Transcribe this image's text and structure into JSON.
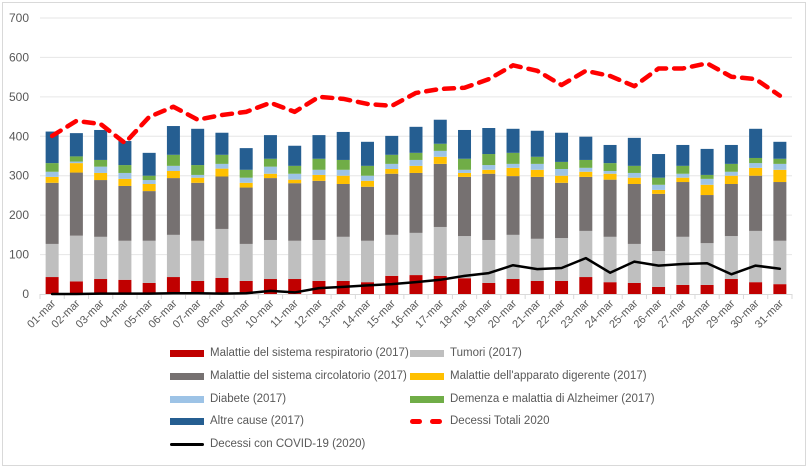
{
  "chart_data": {
    "type": "bar",
    "subtype": "stacked-bar-with-lines",
    "title": "",
    "xlabel": "",
    "ylabel": "",
    "ylim": [
      0,
      700
    ],
    "yticks": [
      0,
      100,
      200,
      300,
      400,
      500,
      600,
      700
    ],
    "grid": true,
    "legend_position": "bottom",
    "categories": [
      "01-mar",
      "02-mar",
      "03-mar",
      "04-mar",
      "05-mar",
      "06-mar",
      "07-mar",
      "08-mar",
      "09-mar",
      "10-mar",
      "11-mar",
      "12-mar",
      "13-mar",
      "14-mar",
      "15-mar",
      "16-mar",
      "17-mar",
      "18-mar",
      "19-mar",
      "20-mar",
      "21-mar",
      "22-mar",
      "23-mar",
      "24-mar",
      "25-mar",
      "26-mar",
      "27-mar",
      "28-mar",
      "29-mar",
      "30-mar",
      "31-mar"
    ],
    "series": [
      {
        "name": "Malattie del sistema respiratorio (2017)",
        "kind": "bar",
        "color": "#c00000",
        "values": [
          43,
          32,
          38,
          36,
          28,
          43,
          33,
          41,
          33,
          38,
          38,
          33,
          33,
          30,
          46,
          48,
          46,
          40,
          28,
          38,
          33,
          33,
          43,
          30,
          28,
          18,
          23,
          23,
          38,
          30,
          25
        ]
      },
      {
        "name": "Tumori (2017)",
        "kind": "bar",
        "color": "#bfbfbf",
        "values": [
          84,
          116,
          107,
          99,
          107,
          107,
          102,
          124,
          94,
          99,
          97,
          104,
          112,
          105,
          104,
          107,
          124,
          107,
          109,
          112,
          107,
          109,
          117,
          115,
          99,
          91,
          122,
          106,
          109,
          130,
          110
        ]
      },
      {
        "name": "Malattie del sistema circolatorio (2017)",
        "kind": "bar",
        "color": "#767171",
        "values": [
          155,
          160,
          144,
          139,
          126,
          144,
          147,
          133,
          143,
          157,
          146,
          150,
          134,
          137,
          155,
          152,
          160,
          150,
          168,
          149,
          157,
          140,
          137,
          145,
          152,
          145,
          139,
          122,
          132,
          140,
          149
        ]
      },
      {
        "name": "Malattie dell'apparato digerente (2017)",
        "kind": "bar",
        "color": "#ffc000",
        "values": [
          15,
          24,
          18,
          18,
          18,
          18,
          13,
          20,
          12,
          11,
          9,
          15,
          21,
          15,
          12,
          18,
          18,
          10,
          10,
          21,
          18,
          18,
          13,
          15,
          16,
          10,
          11,
          26,
          21,
          20,
          31
        ]
      },
      {
        "name": "Diabete (2017)",
        "kind": "bar",
        "color": "#9dc3e6",
        "values": [
          13,
          4,
          16,
          15,
          10,
          13,
          7,
          12,
          13,
          18,
          15,
          13,
          15,
          13,
          13,
          15,
          15,
          8,
          12,
          10,
          15,
          17,
          10,
          7,
          12,
          13,
          10,
          15,
          10,
          12,
          15
        ]
      },
      {
        "name": "Demenza e malattia di Alzheimer (2017)",
        "kind": "bar",
        "color": "#70ad47",
        "values": [
          22,
          13,
          17,
          20,
          11,
          28,
          25,
          23,
          20,
          20,
          20,
          28,
          25,
          25,
          23,
          18,
          18,
          28,
          28,
          28,
          18,
          18,
          20,
          20,
          18,
          18,
          20,
          10,
          20,
          13,
          13
        ]
      },
      {
        "name": "Altre cause (2017)",
        "kind": "bar",
        "color": "#255e91",
        "values": [
          80,
          59,
          76,
          61,
          58,
          73,
          92,
          56,
          55,
          60,
          51,
          60,
          71,
          61,
          48,
          66,
          61,
          73,
          66,
          61,
          66,
          74,
          59,
          46,
          71,
          60,
          53,
          66,
          48,
          74,
          43
        ]
      },
      {
        "name": "Decessi Totali 2020",
        "kind": "line",
        "style": "dashed",
        "color": "#ff0000",
        "values": [
          401,
          439,
          431,
          383,
          449,
          475,
          442,
          454,
          462,
          485,
          462,
          500,
          495,
          482,
          477,
          510,
          520,
          523,
          545,
          580,
          566,
          530,
          566,
          553,
          527,
          572,
          572,
          585,
          551,
          545,
          503
        ]
      },
      {
        "name": "Decessi con COVID-19 (2020)",
        "kind": "line",
        "style": "solid",
        "color": "#000000",
        "values": [
          0,
          0,
          1,
          1,
          1,
          2,
          2,
          1,
          2,
          8,
          4,
          15,
          18,
          22,
          25,
          30,
          36,
          46,
          53,
          73,
          63,
          66,
          91,
          54,
          82,
          72,
          76,
          78,
          50,
          72,
          64
        ]
      }
    ]
  },
  "legend": {
    "items": [
      {
        "label": "Malattie del sistema respiratorio (2017)",
        "color": "#c00000",
        "kind": "bar"
      },
      {
        "label": "Tumori (2017)",
        "color": "#bfbfbf",
        "kind": "bar"
      },
      {
        "label": "Malattie del sistema circolatorio (2017)",
        "color": "#767171",
        "kind": "bar"
      },
      {
        "label": "Malattie dell'apparato digerente (2017)",
        "color": "#ffc000",
        "kind": "bar"
      },
      {
        "label": "Diabete (2017)",
        "color": "#9dc3e6",
        "kind": "bar"
      },
      {
        "label": "Demenza e malattia di Alzheimer (2017)",
        "color": "#70ad47",
        "kind": "bar"
      },
      {
        "label": "Altre cause (2017)",
        "color": "#255e91",
        "kind": "bar"
      },
      {
        "label": "Decessi Totali 2020",
        "color": "#ff0000",
        "kind": "dashed-line"
      },
      {
        "label": "Decessi con COVID-19 (2020)",
        "color": "#000000",
        "kind": "line"
      }
    ]
  }
}
